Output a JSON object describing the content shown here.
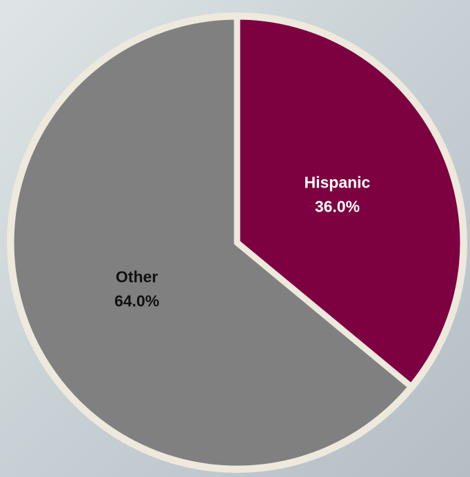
{
  "chart_data": {
    "type": "pie",
    "categories": [
      "Hispanic",
      "Other"
    ],
    "values": [
      36.0,
      64.0
    ],
    "value_labels": [
      "36.0%",
      "64.0%"
    ],
    "colors": [
      "#7d0040",
      "#808080"
    ],
    "label_colors": [
      "#ffffff",
      "#111111"
    ],
    "start_angle": 0,
    "direction": "clockwise"
  }
}
